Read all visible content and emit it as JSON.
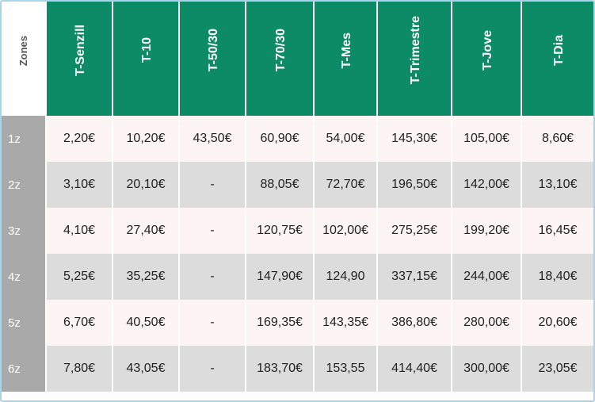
{
  "table": {
    "zones_label": "Zones",
    "columns": [
      "T-Senzill",
      "T-10",
      "T-50/30",
      "T-70/30",
      "T-Mes",
      "T-Trimestre",
      "T-Jove",
      "T-Dia"
    ],
    "rows": [
      {
        "zone": "1z",
        "values": [
          "2,20€",
          "10,20€",
          "43,50€",
          "60,90€",
          "54,00€",
          "145,30€",
          "105,00€",
          "8,60€"
        ]
      },
      {
        "zone": "2z",
        "values": [
          "3,10€",
          "20,10€",
          "-",
          "88,05€",
          "72,70€",
          "196,50€",
          "142,00€",
          "13,10€"
        ]
      },
      {
        "zone": "3z",
        "values": [
          "4,10€",
          "27,40€",
          "-",
          "120,75€",
          "102,00€",
          "275,25€",
          "199,20€",
          "16,45€"
        ]
      },
      {
        "zone": "4z",
        "values": [
          "5,25€",
          "35,25€",
          "-",
          "147,90€",
          "124,90",
          "337,15€",
          "244,00€",
          "18,40€"
        ]
      },
      {
        "zone": "5z",
        "values": [
          "6,70€",
          "40,50€",
          "-",
          "169,35€",
          "143,35€",
          "386,80€",
          "280,00€",
          "20,60€"
        ]
      },
      {
        "zone": "6z",
        "values": [
          "7,80€",
          "43,05€",
          "-",
          "183,70€",
          "153,55",
          "414,40€",
          "300,00€",
          "23,05€"
        ]
      }
    ]
  },
  "colors": {
    "header_green": "#0d8a66",
    "zone_gray": "#a9a9a9",
    "row_light": "#fdf4f4",
    "row_dark": "#dcdcdc",
    "border_blue": "#a8d4ec"
  }
}
